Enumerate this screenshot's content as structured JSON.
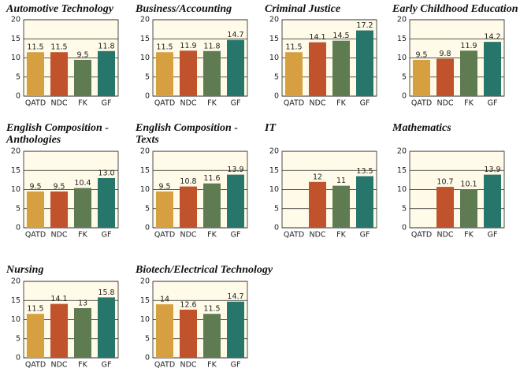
{
  "chart_data": [
    {
      "type": "bar",
      "title": "Automotive Technology",
      "categories": [
        "QATD",
        "NDC",
        "FK",
        "GF"
      ],
      "values": [
        11.5,
        11.5,
        9.5,
        11.8
      ],
      "colors": [
        "#d6a040",
        "#c0532b",
        "#5f7b52",
        "#27766b"
      ],
      "ylim": [
        0,
        20
      ],
      "yticks": [
        0,
        5,
        10,
        15,
        20
      ],
      "grid": true
    },
    {
      "type": "bar",
      "title": "Business/Accounting",
      "categories": [
        "QATD",
        "NDC",
        "FK",
        "GF"
      ],
      "values": [
        11.5,
        11.9,
        11.8,
        14.7
      ],
      "colors": [
        "#d6a040",
        "#c0532b",
        "#5f7b52",
        "#27766b"
      ],
      "ylim": [
        0,
        20
      ],
      "yticks": [
        0,
        5,
        10,
        15,
        20
      ],
      "grid": true
    },
    {
      "type": "bar",
      "title": "Criminal Justice",
      "categories": [
        "QATD",
        "NDC",
        "FK",
        "GF"
      ],
      "values": [
        11.5,
        14.1,
        14.5,
        17.2
      ],
      "colors": [
        "#d6a040",
        "#c0532b",
        "#5f7b52",
        "#27766b"
      ],
      "ylim": [
        0,
        20
      ],
      "yticks": [
        0,
        5,
        10,
        15,
        20
      ],
      "grid": true
    },
    {
      "type": "bar",
      "title": "Early Childhood Education",
      "categories": [
        "QATD",
        "NDC",
        "FK",
        "GF"
      ],
      "values": [
        9.5,
        9.8,
        11.9,
        14.2
      ],
      "colors": [
        "#d6a040",
        "#c0532b",
        "#5f7b52",
        "#27766b"
      ],
      "ylim": [
        0,
        20
      ],
      "yticks": [
        0,
        5,
        10,
        15,
        20
      ],
      "grid": true
    },
    {
      "type": "bar",
      "title": "English Composition - Anthologies",
      "categories": [
        "QATD",
        "NDC",
        "FK",
        "GF"
      ],
      "values": [
        9.5,
        9.5,
        10.4,
        13.0
      ],
      "value_labels": [
        "9.5",
        "9.5",
        "10.4",
        "13.0"
      ],
      "colors": [
        "#d6a040",
        "#c0532b",
        "#5f7b52",
        "#27766b"
      ],
      "ylim": [
        0,
        20
      ],
      "yticks": [
        0,
        5,
        10,
        15,
        20
      ],
      "grid": true
    },
    {
      "type": "bar",
      "title": "English Composition - Texts",
      "categories": [
        "QATD",
        "NDC",
        "FK",
        "GF"
      ],
      "values": [
        9.5,
        10.8,
        11.6,
        13.9
      ],
      "colors": [
        "#d6a040",
        "#c0532b",
        "#5f7b52",
        "#27766b"
      ],
      "ylim": [
        0,
        20
      ],
      "yticks": [
        0,
        5,
        10,
        15,
        20
      ],
      "grid": true
    },
    {
      "type": "bar",
      "title": "IT",
      "categories": [
        "QATD",
        "NDC",
        "FK",
        "GF"
      ],
      "values": [
        null,
        12,
        11,
        13.5
      ],
      "colors": [
        "#d6a040",
        "#c0532b",
        "#5f7b52",
        "#27766b"
      ],
      "ylim": [
        0,
        20
      ],
      "yticks": [
        0,
        5,
        10,
        15,
        20
      ],
      "grid": true
    },
    {
      "type": "bar",
      "title": "Mathematics",
      "categories": [
        "QATD",
        "NDC",
        "FK",
        "GF"
      ],
      "values": [
        null,
        10.7,
        10.1,
        13.9
      ],
      "colors": [
        "#d6a040",
        "#c0532b",
        "#5f7b52",
        "#27766b"
      ],
      "ylim": [
        0,
        20
      ],
      "yticks": [
        0,
        5,
        10,
        15,
        20
      ],
      "grid": true
    },
    {
      "type": "bar",
      "title": "Nursing",
      "categories": [
        "QATD",
        "NDC",
        "FK",
        "GF"
      ],
      "values": [
        11.5,
        14.1,
        13,
        15.8
      ],
      "colors": [
        "#d6a040",
        "#c0532b",
        "#5f7b52",
        "#27766b"
      ],
      "ylim": [
        0,
        20
      ],
      "yticks": [
        0,
        5,
        10,
        15,
        20
      ],
      "grid": true
    },
    {
      "type": "bar",
      "title": "Biotech/Electrical Technology",
      "categories": [
        "QATD",
        "NDC",
        "FK",
        "GF"
      ],
      "values": [
        14,
        12.6,
        11.5,
        14.7
      ],
      "colors": [
        "#d6a040",
        "#c0532b",
        "#5f7b52",
        "#27766b"
      ],
      "ylim": [
        0,
        20
      ],
      "yticks": [
        0,
        5,
        10,
        15,
        20
      ],
      "grid": true
    }
  ]
}
